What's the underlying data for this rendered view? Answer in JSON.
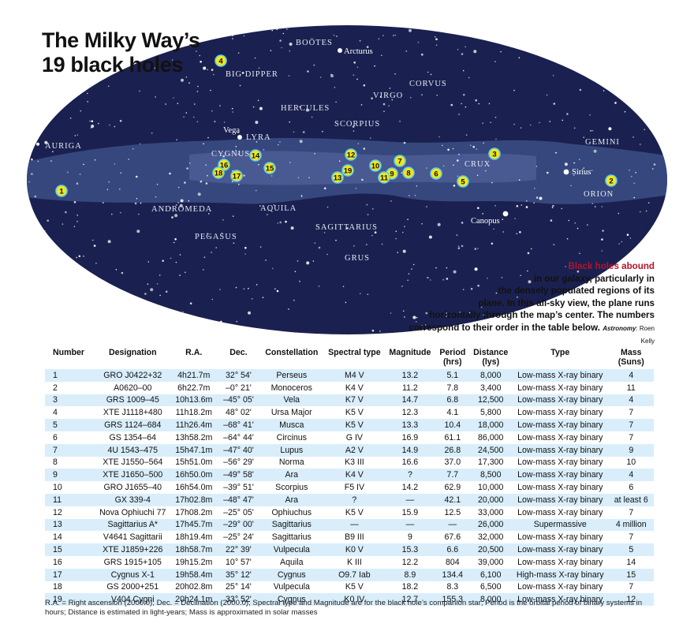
{
  "title_line1": "The Milky Way’s",
  "title_line2": "19 black holes",
  "caption": {
    "highlight": "Black holes abound",
    "lines": [
      "in our galaxy, particularly in",
      "the densely populated regions of its",
      "plane. In this all-sky view, the plane runs",
      "horizontally through the map’s center. The numbers",
      "correspond to their order in the table below."
    ],
    "credit_org": "Astronomy",
    "credit_name": ": Roen Kelly"
  },
  "constellation_labels": [
    "BOÖTES",
    "BIG DIPPER",
    "CORVUS",
    "VIRGO",
    "HERCULES",
    "SCORPIUS",
    "AURIGA",
    "LYRA",
    "CYGNUS",
    "CRUX",
    "GEMINI",
    "ORION",
    "ANDROMEDA",
    "AQUILA",
    "SAGITTARIUS",
    "PEGASUS",
    "GRUS"
  ],
  "star_labels": [
    "Arcturus",
    "Vega",
    "Sirius",
    "Canopus"
  ],
  "markers": [
    "1",
    "2",
    "3",
    "4",
    "5",
    "6",
    "7",
    "8",
    "9",
    "10",
    "11",
    "12",
    "13",
    "14",
    "15",
    "16",
    "17",
    "18",
    "19"
  ],
  "table": {
    "headers": {
      "number": "Number",
      "designation": "Designation",
      "ra": "R.A.",
      "dec": "Dec.",
      "constellation": "Constellation",
      "spectral": "Spectral type",
      "magnitude": "Magnitude",
      "period": [
        "Period",
        "(hrs)"
      ],
      "distance": [
        "Distance",
        "(lys)"
      ],
      "type": "Type",
      "mass": [
        "Mass",
        "(Suns)"
      ]
    },
    "rows": [
      {
        "number": "1",
        "designation": "GRO J0422+32",
        "ra": "4h21.7m",
        "dec": "32° 54'",
        "constellation": "Perseus",
        "spectral": "M4 V",
        "magnitude": "13.2",
        "period": "5.1",
        "distance": "8,000",
        "type": "Low-mass X-ray binary",
        "mass": "4"
      },
      {
        "number": "2",
        "designation": "A0620–00",
        "ra": "6h22.7m",
        "dec": "–0° 21'",
        "constellation": "Monoceros",
        "spectral": "K4 V",
        "magnitude": "11.2",
        "period": "7.8",
        "distance": "3,400",
        "type": "Low-mass X-ray binary",
        "mass": "11"
      },
      {
        "number": "3",
        "designation": "GRS 1009–45",
        "ra": "10h13.6m",
        "dec": "–45° 05'",
        "constellation": "Vela",
        "spectral": "K7 V",
        "magnitude": "14.7",
        "period": "6.8",
        "distance": "12,500",
        "type": "Low-mass X-ray binary",
        "mass": "4"
      },
      {
        "number": "4",
        "designation": "XTE J1118+480",
        "ra": "11h18.2m",
        "dec": "48° 02'",
        "constellation": "Ursa Major",
        "spectral": "K5 V",
        "magnitude": "12.3",
        "period": "4.1",
        "distance": "5,800",
        "type": "Low-mass X-ray binary",
        "mass": "7"
      },
      {
        "number": "5",
        "designation": "GRS 1124–684",
        "ra": "11h26.4m",
        "dec": "–68° 41'",
        "constellation": "Musca",
        "spectral": "K5 V",
        "magnitude": "13.3",
        "period": "10.4",
        "distance": "18,000",
        "type": "Low-mass X-ray binary",
        "mass": "7"
      },
      {
        "number": "6",
        "designation": "GS 1354–64",
        "ra": "13h58.2m",
        "dec": "–64° 44'",
        "constellation": "Circinus",
        "spectral": "G IV",
        "magnitude": "16.9",
        "period": "61.1",
        "distance": "86,000",
        "type": "Low-mass X-ray binary",
        "mass": "7"
      },
      {
        "number": "7",
        "designation": "4U 1543–475",
        "ra": "15h47.1m",
        "dec": "–47° 40'",
        "constellation": "Lupus",
        "spectral": "A2 V",
        "magnitude": "14.9",
        "period": "26.8",
        "distance": "24,500",
        "type": "Low-mass X-ray binary",
        "mass": "9"
      },
      {
        "number": "8",
        "designation": "XTE J1550–564",
        "ra": "15h51.0m",
        "dec": "–56° 29'",
        "constellation": "Norma",
        "spectral": "K3 III",
        "magnitude": "16.6",
        "period": "37.0",
        "distance": "17,300",
        "type": "Low-mass X-ray binary",
        "mass": "10"
      },
      {
        "number": "9",
        "designation": "XTE J1650–500",
        "ra": "16h50.0m",
        "dec": "–49° 58'",
        "constellation": "Ara",
        "spectral": "K4 V",
        "magnitude": "?",
        "period": "7.7",
        "distance": "8,500",
        "type": "Low-mass X-ray binary",
        "mass": "4"
      },
      {
        "number": "10",
        "designation": "GRO J1655–40",
        "ra": "16h54.0m",
        "dec": "–39° 51'",
        "constellation": "Scorpius",
        "spectral": "F5 IV",
        "magnitude": "14.2",
        "period": "62.9",
        "distance": "10,000",
        "type": "Low-mass X-ray binary",
        "mass": "6"
      },
      {
        "number": "11",
        "designation": "GX 339-4",
        "ra": "17h02.8m",
        "dec": "–48° 47'",
        "constellation": "Ara",
        "spectral": "?",
        "magnitude": "—",
        "period": "42.1",
        "distance": "20,000",
        "type": "Low-mass X-ray binary",
        "mass": "at least 6"
      },
      {
        "number": "12",
        "designation": "Nova Ophiuchi 77",
        "ra": "17h08.2m",
        "dec": "–25° 05'",
        "constellation": "Ophiuchus",
        "spectral": "K5 V",
        "magnitude": "15.9",
        "period": "12.5",
        "distance": "33,000",
        "type": "Low-mass X-ray binary",
        "mass": "7"
      },
      {
        "number": "13",
        "designation": "Sagittarius A*",
        "ra": "17h45.7m",
        "dec": "–29° 00'",
        "constellation": "Sagittarius",
        "spectral": "—",
        "magnitude": "—",
        "period": "—",
        "distance": "26,000",
        "type": "Supermassive",
        "mass": "4 million"
      },
      {
        "number": "14",
        "designation": "V4641 Sagittarii",
        "ra": "18h19.4m",
        "dec": "–25° 24'",
        "constellation": "Sagittarius",
        "spectral": "B9 III",
        "magnitude": "9",
        "period": "67.6",
        "distance": "32,000",
        "type": "Low-mass X-ray binary",
        "mass": "7"
      },
      {
        "number": "15",
        "designation": "XTE J1859+226",
        "ra": "18h58.7m",
        "dec": "22° 39'",
        "constellation": "Vulpecula",
        "spectral": "K0 V",
        "magnitude": "15.3",
        "period": "6.6",
        "distance": "20,500",
        "type": "Low-mass X-ray binary",
        "mass": "5"
      },
      {
        "number": "16",
        "designation": "GRS 1915+105",
        "ra": "19h15.2m",
        "dec": "10° 57'",
        "constellation": "Aquila",
        "spectral": "K III",
        "magnitude": "12.2",
        "period": "804",
        "distance": "39,000",
        "type": "Low-mass X-ray binary",
        "mass": "14"
      },
      {
        "number": "17",
        "designation": "Cygnus X-1",
        "ra": "19h58.4m",
        "dec": "35° 12'",
        "constellation": "Cygnus",
        "spectral": "O9.7 Iab",
        "magnitude": "8.9",
        "period": "134.4",
        "distance": "6,100",
        "type": "High-mass X-ray binary",
        "mass": "15"
      },
      {
        "number": "18",
        "designation": "GS 2000+251",
        "ra": "20h02.8m",
        "dec": "25° 14'",
        "constellation": "Vulpecula",
        "spectral": "K5 V",
        "magnitude": "18.2",
        "period": "8.3",
        "distance": "6,500",
        "type": "Low-mass X-ray binary",
        "mass": "7"
      },
      {
        "number": "19",
        "designation": "V404 Cygni",
        "ra": "20h24.1m",
        "dec": "33° 52'",
        "constellation": "Cygnus",
        "spectral": "K0 IV",
        "magnitude": "12.7",
        "period": "155.3",
        "distance": "8,000",
        "type": "Low-mass X-ray binary",
        "mass": "12"
      }
    ]
  },
  "footnote": "R.A. = Right ascension (2000.0); Dec. = Declination (2000.0); Spectral type and Magnitude are for the black hole’s companion star; Period is the orbital period of binary systems in hours; Distance is estimated in light-years; Mass is approximated in solar masses",
  "colors": {
    "sky": "#1a2150",
    "band": "#3c4d85",
    "marker_fill": "#f2e51c",
    "marker_ring": "#5ad0f0",
    "highlight": "#b5122a",
    "row_stripe": "#d9eefa"
  }
}
